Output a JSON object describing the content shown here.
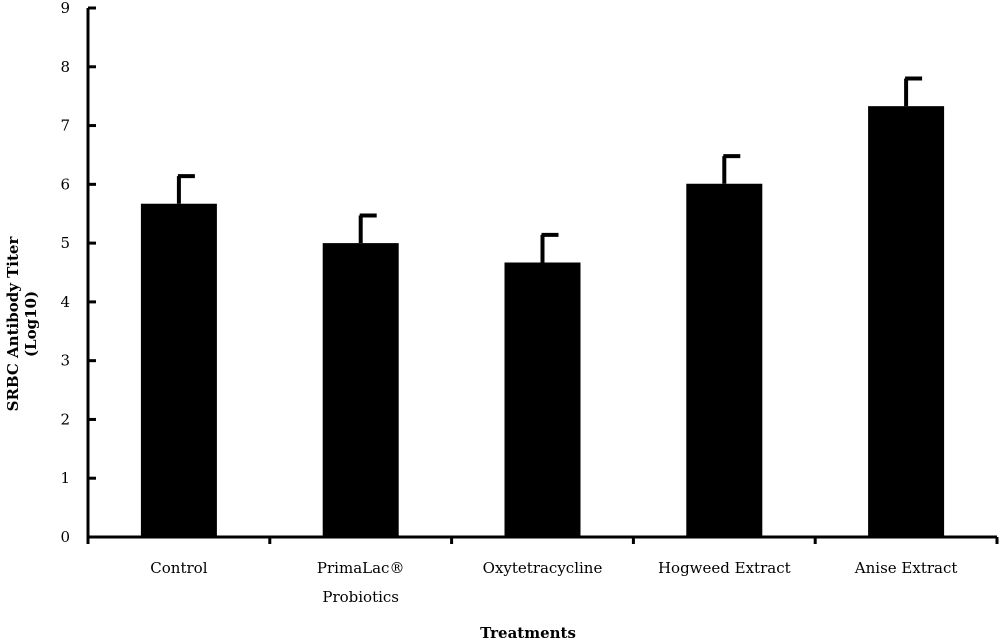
{
  "chart_data": {
    "type": "bar",
    "categories": [
      [
        "Control"
      ],
      [
        "PrimaLac®",
        "Probiotics"
      ],
      [
        "Oxytetracycline"
      ],
      [
        "Hogweed Extract"
      ],
      [
        "Anise Extract"
      ]
    ],
    "values": [
      5.67,
      5.0,
      4.67,
      6.01,
      7.33
    ],
    "error_upper": [
      0.47,
      0.47,
      0.47,
      0.47,
      0.47
    ],
    "yticks": [
      0,
      1,
      2,
      3,
      4,
      5,
      6,
      7,
      8,
      9
    ],
    "ylim": [
      0,
      9
    ],
    "ylabel": [
      "SRBC Antibody Titer",
      "(Log10)"
    ],
    "xlabel": "Treatments",
    "grid": false,
    "bar_color": "#000000",
    "title": ""
  }
}
